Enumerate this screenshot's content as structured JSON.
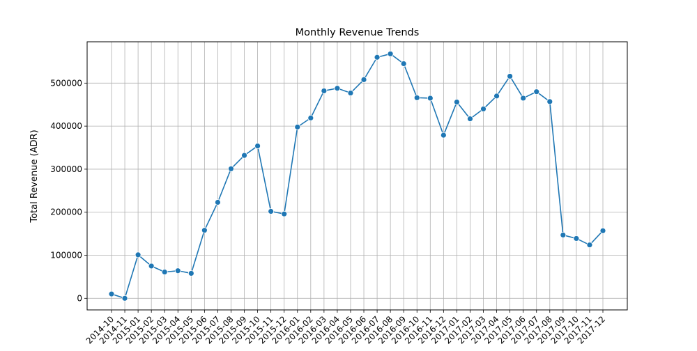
{
  "chart_data": {
    "type": "line",
    "title": "Monthly Revenue Trends",
    "xlabel": "",
    "ylabel": "Total Revenue (ADR)",
    "x": [
      "2014-10",
      "2014-11",
      "2015-01",
      "2015-02",
      "2015-03",
      "2015-04",
      "2015-05",
      "2015-06",
      "2015-07",
      "2015-08",
      "2015-09",
      "2015-10",
      "2015-11",
      "2015-12",
      "2016-01",
      "2016-02",
      "2016-03",
      "2016-04",
      "2016-05",
      "2016-06",
      "2016-07",
      "2016-08",
      "2016-09",
      "2016-10",
      "2016-11",
      "2016-12",
      "2017-01",
      "2017-02",
      "2017-03",
      "2017-04",
      "2017-05",
      "2017-06",
      "2017-07",
      "2017-08",
      "2017-09",
      "2017-10",
      "2017-11",
      "2017-12"
    ],
    "series": [
      {
        "values": [
          10000,
          0,
          101000,
          75000,
          61000,
          64000,
          58000,
          158000,
          223000,
          301000,
          332000,
          354000,
          202000,
          196000,
          398000,
          419000,
          482000,
          488000,
          477000,
          508000,
          560000,
          568000,
          545000,
          466000,
          465000,
          379000,
          456000,
          417000,
          440000,
          470000,
          516000,
          465000,
          480000,
          457000,
          147000,
          139000,
          124000,
          157000
        ],
        "color": "#1f77b4"
      }
    ],
    "yticks": [
      0,
      100000,
      200000,
      300000,
      400000,
      500000
    ],
    "ylim": [
      -27000,
      596000
    ],
    "grid": true,
    "marker": "circle"
  }
}
